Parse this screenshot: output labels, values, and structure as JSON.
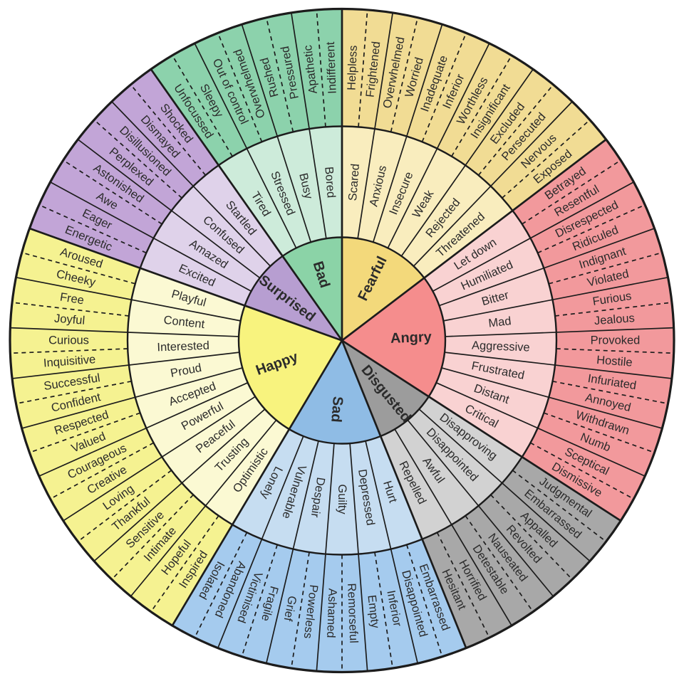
{
  "page": {
    "background_color": "#ffffff"
  },
  "chart_data": {
    "type": "sunburst",
    "description": "Feelings wheel: three concentric rings of emotions. Core emotions in the center, secondary emotions in the middle ring, tertiary emotions in the outer ring. Sections run clockwise from the top.",
    "rings": [
      "core",
      "middle",
      "outer"
    ],
    "line_color": "#1c1c1c",
    "text_color": "#2b2b2b",
    "sections": [
      {
        "name": "Fearful",
        "colors": {
          "core": "#F3D97B",
          "middle": "#F9EDBE",
          "outer": "#F1DC94"
        },
        "middle": [
          {
            "name": "Scared",
            "outer": [
              "Helpless",
              "Frightened"
            ]
          },
          {
            "name": "Anxious",
            "outer": [
              "Overwhelmed",
              "Worried"
            ]
          },
          {
            "name": "Insecure",
            "outer": [
              "Inadequate",
              "Inferior"
            ]
          },
          {
            "name": "Weak",
            "outer": [
              "Worthless",
              "Insignificant"
            ]
          },
          {
            "name": "Rejected",
            "outer": [
              "Excluded",
              "Persecuted"
            ]
          },
          {
            "name": "Threatened",
            "outer": [
              "Nervous",
              "Exposed"
            ]
          }
        ]
      },
      {
        "name": "Angry",
        "colors": {
          "core": "#F58D8D",
          "middle": "#F9D2D2",
          "outer": "#F2999C"
        },
        "middle": [
          {
            "name": "Let down",
            "outer": [
              "Betrayed",
              "Resentful"
            ]
          },
          {
            "name": "Humiliated",
            "outer": [
              "Disrespected",
              "Ridiculed"
            ]
          },
          {
            "name": "Bitter",
            "outer": [
              "Indignant",
              "Violated"
            ]
          },
          {
            "name": "Mad",
            "outer": [
              "Furious",
              "Jealous"
            ]
          },
          {
            "name": "Aggressive",
            "outer": [
              "Provoked",
              "Hostile"
            ]
          },
          {
            "name": "Frustrated",
            "outer": [
              "Infuriated",
              "Annoyed"
            ]
          },
          {
            "name": "Distant",
            "outer": [
              "Withdrawn",
              "Numb"
            ]
          },
          {
            "name": "Critical",
            "outer": [
              "Sceptical",
              "Dismissive"
            ]
          }
        ]
      },
      {
        "name": "Disgusted",
        "colors": {
          "core": "#9C9C9C",
          "middle": "#D2D2D2",
          "outer": "#A8A8A8"
        },
        "middle": [
          {
            "name": "Disapproving",
            "outer": [
              "Judgmental",
              "Embarrassed"
            ]
          },
          {
            "name": "Disappointed",
            "outer": [
              "Appalled",
              "Revolted"
            ]
          },
          {
            "name": "Awful",
            "outer": [
              "Nauseated",
              "Detestable"
            ]
          },
          {
            "name": "Repelled",
            "outer": [
              "Horrified",
              "Hesitant"
            ]
          }
        ]
      },
      {
        "name": "Sad",
        "colors": {
          "core": "#8FBCE5",
          "middle": "#C6DDF1",
          "outer": "#A5CBEE"
        },
        "middle": [
          {
            "name": "Hurt",
            "outer": [
              "Embarrassed",
              "Disappointed"
            ]
          },
          {
            "name": "Depressed",
            "outer": [
              "Inferior",
              "Empty"
            ]
          },
          {
            "name": "Guilty",
            "outer": [
              "Remorseful",
              "Ashamed"
            ]
          },
          {
            "name": "Despair",
            "outer": [
              "Powerless",
              "Grief"
            ]
          },
          {
            "name": "Vulnerable",
            "outer": [
              "Fragile",
              "Victimised"
            ]
          },
          {
            "name": "Lonely",
            "outer": [
              "Abandoned",
              "Isolated"
            ]
          }
        ]
      },
      {
        "name": "Happy",
        "colors": {
          "core": "#F8F37E",
          "middle": "#FBF9D3",
          "outer": "#F5F291"
        },
        "middle": [
          {
            "name": "Optimistic",
            "outer": [
              "Inspired",
              "Hopeful"
            ]
          },
          {
            "name": "Trusting",
            "outer": [
              "Intimate",
              "Sensitive"
            ]
          },
          {
            "name": "Peaceful",
            "outer": [
              "Thankful",
              "Loving"
            ]
          },
          {
            "name": "Powerful",
            "outer": [
              "Creative",
              "Courageous"
            ]
          },
          {
            "name": "Accepted",
            "outer": [
              "Valued",
              "Respected"
            ]
          },
          {
            "name": "Proud",
            "outer": [
              "Confident",
              "Successful"
            ]
          },
          {
            "name": "Interested",
            "outer": [
              "Inquisitive",
              "Curious"
            ]
          },
          {
            "name": "Content",
            "outer": [
              "Joyful",
              "Free"
            ]
          },
          {
            "name": "Playful",
            "outer": [
              "Cheeky",
              "Aroused"
            ]
          }
        ]
      },
      {
        "name": "Surprised",
        "colors": {
          "core": "#B79ED1",
          "middle": "#DFD2EA",
          "outer": "#C2A5D7"
        },
        "middle": [
          {
            "name": "Excited",
            "outer": [
              "Energetic",
              "Eager"
            ]
          },
          {
            "name": "Amazed",
            "outer": [
              "Awe",
              "Astonished"
            ]
          },
          {
            "name": "Confused",
            "outer": [
              "Perplexed",
              "Disillusioned"
            ]
          },
          {
            "name": "Startled",
            "outer": [
              "Dismayed",
              "Shocked"
            ]
          }
        ]
      },
      {
        "name": "Bad",
        "colors": {
          "core": "#8BD3A7",
          "middle": "#CDEBDA",
          "outer": "#8CD2AC"
        },
        "middle": [
          {
            "name": "Tired",
            "outer": [
              "Unfocussed",
              "Sleepy"
            ]
          },
          {
            "name": "Stressed",
            "outer": [
              "Out of control",
              "Overwhelmed"
            ]
          },
          {
            "name": "Busy",
            "outer": [
              "Rushed",
              "Pressured"
            ]
          },
          {
            "name": "Bored",
            "outer": [
              "Apathetic",
              "Indifferent"
            ]
          }
        ]
      }
    ]
  }
}
